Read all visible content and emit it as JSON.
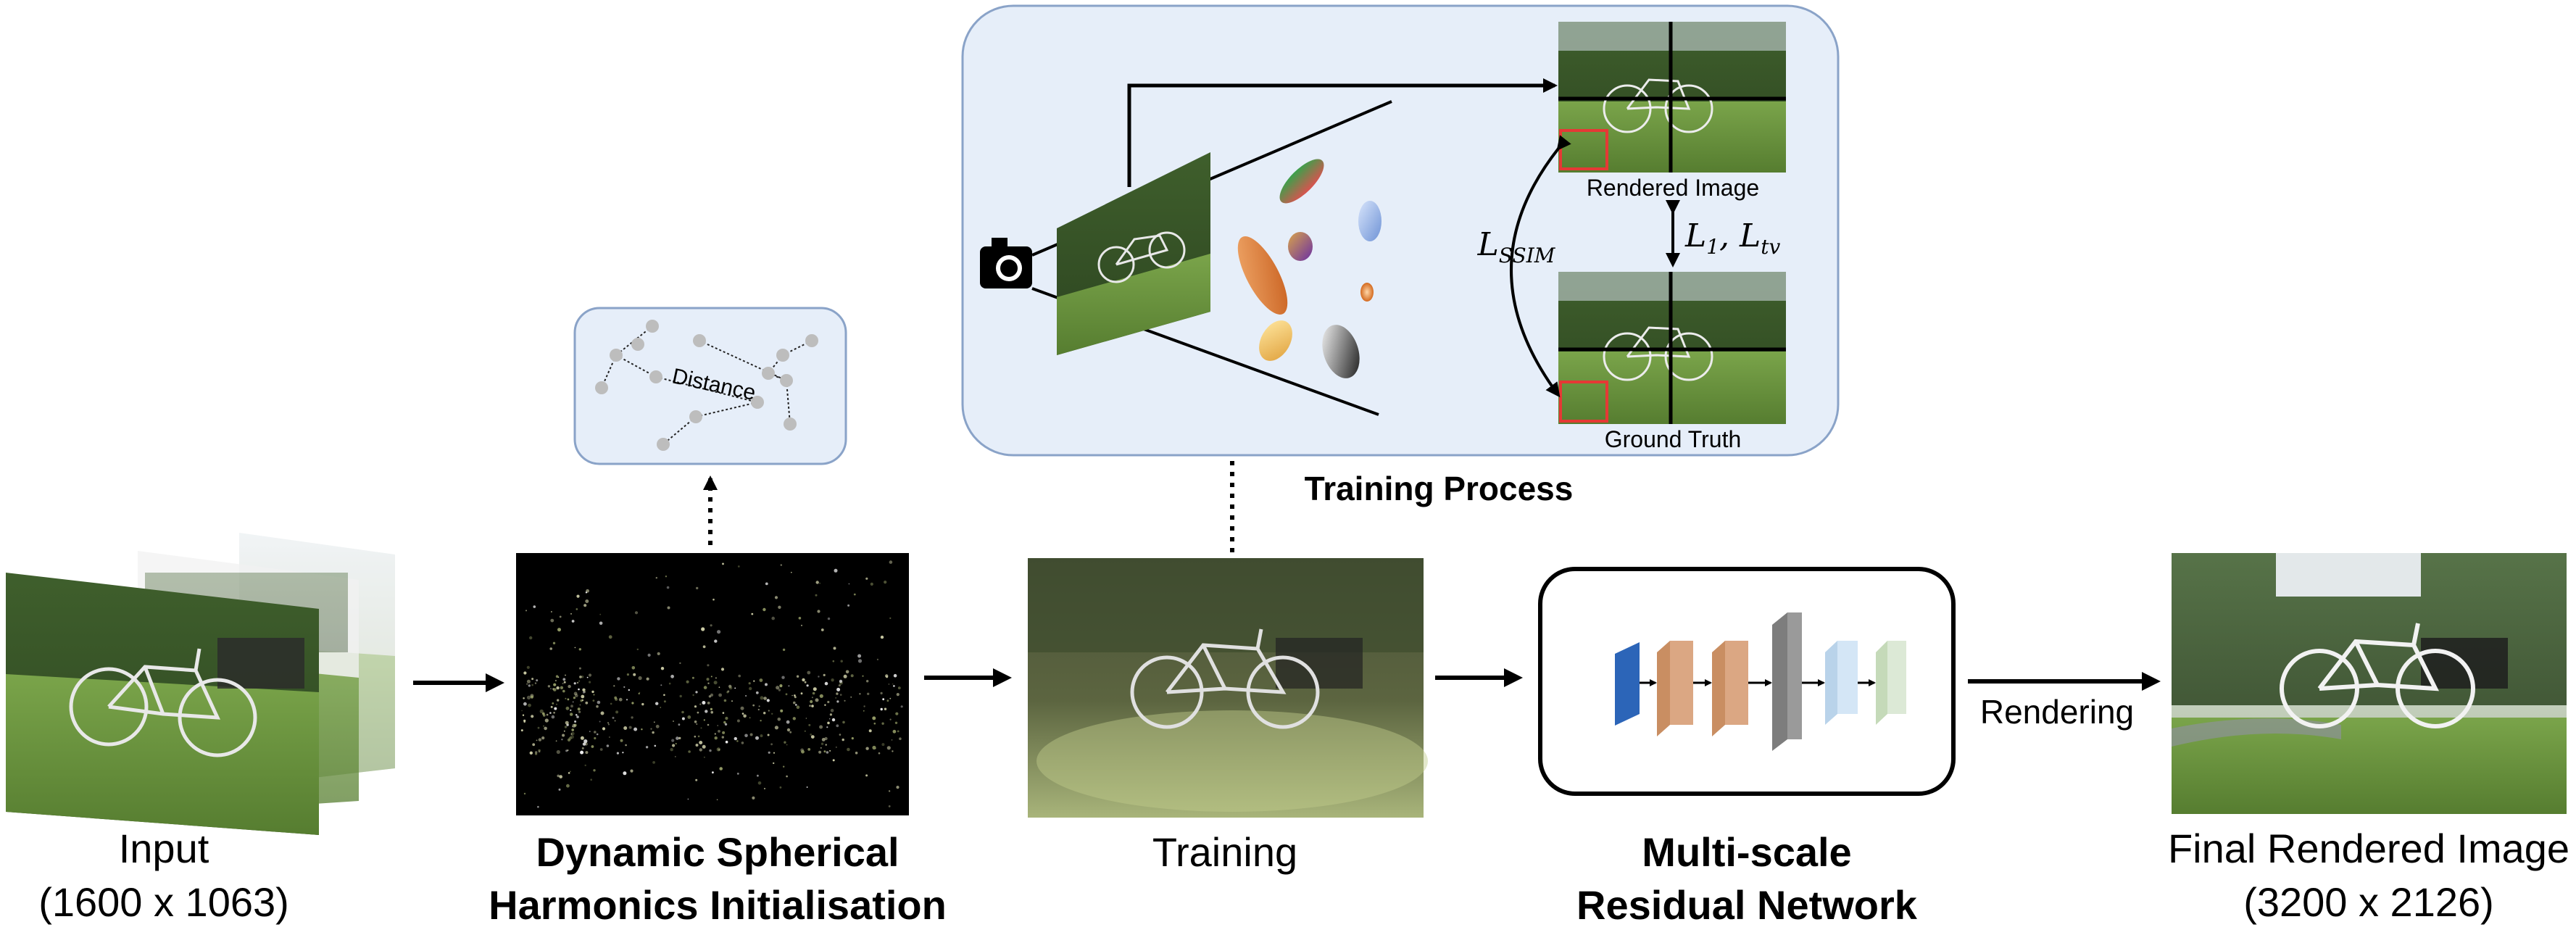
{
  "stages": {
    "input": {
      "line1": "Input",
      "line2": "(1600 x 1063)"
    },
    "init": {
      "line1": "Dynamic Spherical",
      "line2": "Harmonics Initialisation"
    },
    "training": {
      "label": "Training"
    },
    "network": {
      "line1": "Multi-scale",
      "line2": "Residual Network"
    },
    "final": {
      "line1": "Final Rendered Image",
      "line2": "(3200 x 2126)"
    }
  },
  "edges": {
    "rendering": "Rendering"
  },
  "distance_panel": {
    "label": "Distance"
  },
  "training_panel": {
    "title": "Training Process",
    "rendered_label": "Rendered Image",
    "ground_truth_label": "Ground Truth",
    "loss_ssim": "L",
    "loss_ssim_sub": "SSIM",
    "loss_pair": {
      "l": "L",
      "l_sub": "1",
      "sep": ", ",
      "tv": "L",
      "tv_sub": "tv"
    }
  },
  "icons": [
    "camera-icon",
    "gaussian-ellipsoid-icon",
    "network-layer-block-icon"
  ],
  "colors": {
    "panel_fill": "#e6eef9",
    "panel_stroke": "#8aa3c8",
    "grass": "#6f9a43",
    "sky": "#cfd9e2",
    "layer_blue": "#2c65b8",
    "layer_orange": "#dba783",
    "layer_gray": "#9a9a9a",
    "layer_lightblue": "#d4e6f6",
    "layer_lightgreen": "#dce9d6",
    "crop_box": "#e53935"
  }
}
